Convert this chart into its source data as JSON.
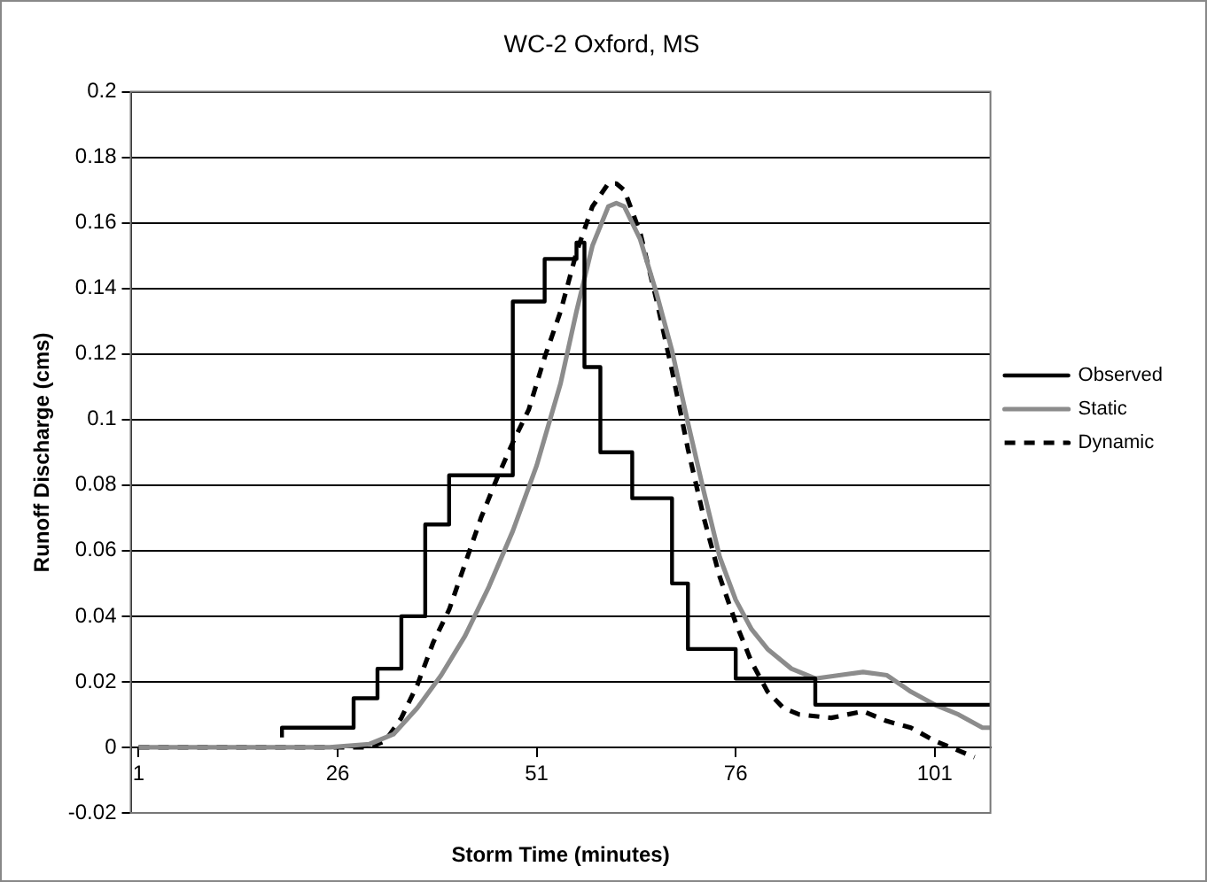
{
  "chart_data": {
    "type": "line",
    "title": "WC-2 Oxford, MS",
    "xlabel": "Storm Time (minutes)",
    "ylabel": "Runoff Discharge (cms)",
    "xlim": [
      0,
      108
    ],
    "xticks": [
      1,
      26,
      51,
      76,
      101
    ],
    "ylim": [
      -0.02,
      0.2
    ],
    "yticks": [
      -0.02,
      0,
      0.02,
      0.04,
      0.06,
      0.08,
      0.1,
      0.12,
      0.14,
      0.16,
      0.18,
      0.2
    ],
    "grid": "y",
    "legend": "right",
    "marker": "none",
    "series": [
      {
        "name": "Observed",
        "type": "step",
        "color": "#000000",
        "line_style": "solid",
        "x": [
          19,
          28,
          31,
          34,
          37,
          40,
          48,
          52,
          56,
          57,
          59,
          63,
          68,
          70,
          76,
          86,
          97,
          108
        ],
        "values": [
          0.003,
          0.006,
          0.015,
          0.024,
          0.04,
          0.068,
          0.083,
          0.136,
          0.149,
          0.154,
          0.116,
          0.09,
          0.076,
          0.05,
          0.03,
          0.021,
          0.013,
          0.013
        ]
      },
      {
        "name": "Static",
        "type": "line",
        "color": "#8c8c8c",
        "line_style": "solid",
        "x": [
          1,
          25,
          30,
          33,
          36,
          39,
          42,
          45,
          48,
          51,
          54,
          56,
          58,
          60,
          61,
          62,
          64,
          66,
          68,
          70,
          72,
          74,
          76,
          78,
          80,
          83,
          86,
          89,
          92,
          95,
          98,
          101,
          104,
          107,
          108
        ],
        "values": [
          0,
          0,
          0.001,
          0.004,
          0.012,
          0.022,
          0.034,
          0.049,
          0.066,
          0.086,
          0.111,
          0.133,
          0.153,
          0.165,
          0.166,
          0.165,
          0.155,
          0.139,
          0.121,
          0.099,
          0.078,
          0.058,
          0.045,
          0.036,
          0.03,
          0.024,
          0.021,
          0.022,
          0.023,
          0.022,
          0.017,
          0.013,
          0.01,
          0.006,
          0.006
        ]
      },
      {
        "name": "Dynamic",
        "type": "line",
        "color": "#000000",
        "line_style": "dashed",
        "x": [
          1,
          30,
          32,
          34,
          36,
          38,
          40,
          42,
          44,
          46,
          48,
          50,
          52,
          54,
          56,
          58,
          60,
          61,
          62,
          64,
          66,
          68,
          70,
          72,
          74,
          76,
          78,
          80,
          82,
          84,
          88,
          92,
          95,
          98,
          101,
          104,
          106
        ],
        "values": [
          0,
          0,
          0.002,
          0.009,
          0.019,
          0.032,
          0.042,
          0.056,
          0.07,
          0.082,
          0.093,
          0.103,
          0.119,
          0.133,
          0.151,
          0.165,
          0.172,
          0.172,
          0.17,
          0.157,
          0.137,
          0.115,
          0.091,
          0.07,
          0.052,
          0.038,
          0.026,
          0.017,
          0.012,
          0.01,
          0.009,
          0.011,
          0.008,
          0.006,
          0.002,
          -0.001,
          -0.003
        ]
      }
    ]
  }
}
